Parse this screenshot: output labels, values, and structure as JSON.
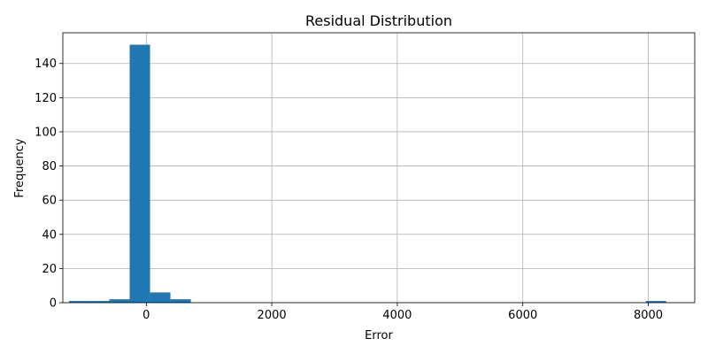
{
  "chart_data": {
    "type": "bar",
    "title": "Residual Distribution",
    "xlabel": "Error",
    "ylabel": "Frequency",
    "xlim": [
      -1330,
      8740
    ],
    "ylim": [
      0,
      158
    ],
    "xticks": [
      0,
      2000,
      4000,
      6000,
      8000
    ],
    "yticks": [
      0,
      20,
      40,
      60,
      80,
      100,
      120,
      140
    ],
    "grid": true,
    "bar_color": "#1f77b4",
    "bins": [
      {
        "x0": -1230,
        "x1": -915,
        "count": 1
      },
      {
        "x0": -915,
        "x1": -590,
        "count": 1
      },
      {
        "x0": -590,
        "x1": -265,
        "count": 2
      },
      {
        "x0": -265,
        "x1": 60,
        "count": 151
      },
      {
        "x0": 60,
        "x1": 385,
        "count": 6
      },
      {
        "x0": 385,
        "x1": 710,
        "count": 2
      },
      {
        "x0": 7960,
        "x1": 8285,
        "count": 1
      }
    ]
  }
}
